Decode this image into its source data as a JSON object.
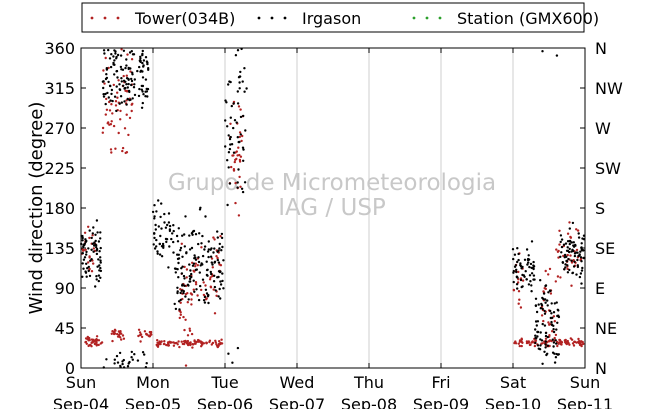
{
  "chart_data": {
    "type": "scatter",
    "title": "",
    "ylabel": "Wind direction (degree)",
    "xlabel": "",
    "ylim": [
      0,
      360
    ],
    "yticks": [
      0,
      45,
      90,
      135,
      180,
      225,
      270,
      315,
      360
    ],
    "y2_ticks": [
      {
        "value": 0,
        "label": "N"
      },
      {
        "value": 45,
        "label": "NE"
      },
      {
        "value": 90,
        "label": "E"
      },
      {
        "value": 135,
        "label": "SE"
      },
      {
        "value": 180,
        "label": "S"
      },
      {
        "value": 225,
        "label": "SW"
      },
      {
        "value": 270,
        "label": "W"
      },
      {
        "value": 315,
        "label": "NW"
      },
      {
        "value": 360,
        "label": "N"
      }
    ],
    "xlim": [
      "Sep-04",
      "Sep-11"
    ],
    "xticks": [
      {
        "day": "Sun",
        "date": "Sep-04"
      },
      {
        "day": "Mon",
        "date": "Sep-05"
      },
      {
        "day": "Tue",
        "date": "Sep-06"
      },
      {
        "day": "Wed",
        "date": "Sep-07"
      },
      {
        "day": "Thu",
        "date": "Sep-08"
      },
      {
        "day": "Fri",
        "date": "Sep-09"
      },
      {
        "day": "Sat",
        "date": "Sep-10"
      },
      {
        "day": "Sun",
        "date": "Sep-11"
      }
    ],
    "grid": true,
    "legend_position": "top",
    "watermark": [
      "Grupo de Micrometeorologia",
      "IAG / USP"
    ],
    "series": [
      {
        "name": "Tower(034B)",
        "color": "#b22222",
        "clusters": [
          {
            "date": "Sep-04",
            "t0": 0.04,
            "t1": 0.3,
            "center": 29,
            "spread": 3,
            "n": 40
          },
          {
            "date": "Sep-04",
            "t0": 0.42,
            "t1": 0.6,
            "center": 37,
            "spread": 3,
            "n": 25
          },
          {
            "date": "Sep-04",
            "t0": 0.3,
            "t1": 0.72,
            "center": 300,
            "spread": 28,
            "n": 60
          },
          {
            "date": "Sep-04",
            "t0": 0.0,
            "t1": 0.2,
            "center": 130,
            "spread": 12,
            "n": 25
          },
          {
            "date": "Sep-04",
            "t0": 0.78,
            "t1": 0.98,
            "center": 37,
            "spread": 3,
            "n": 20
          },
          {
            "date": "Sep-05",
            "t0": 0.05,
            "t1": 0.98,
            "center": 28,
            "spread": 2,
            "n": 90
          },
          {
            "date": "Sep-05",
            "t0": 0.35,
            "t1": 0.55,
            "center": 75,
            "spread": 28,
            "n": 40
          },
          {
            "date": "Sep-05",
            "t0": 0.55,
            "t1": 0.95,
            "center": 110,
            "spread": 20,
            "n": 40
          },
          {
            "date": "Sep-06",
            "t0": 0.05,
            "t1": 0.25,
            "center": 240,
            "spread": 30,
            "n": 35
          },
          {
            "date": "Sep-10",
            "t0": 0.0,
            "t1": 0.7,
            "center": 29,
            "spread": 2,
            "n": 60
          },
          {
            "date": "Sep-10",
            "t0": 0.0,
            "t1": 0.15,
            "center": 100,
            "spread": 15,
            "n": 15
          },
          {
            "date": "Sep-10",
            "t0": 0.4,
            "t1": 0.6,
            "center": 60,
            "spread": 22,
            "n": 30
          },
          {
            "date": "Sep-10",
            "t0": 0.7,
            "t1": 0.98,
            "center": 29,
            "spread": 2,
            "n": 35
          },
          {
            "date": "Sep-10",
            "t0": 0.6,
            "t1": 1.0,
            "center": 125,
            "spread": 15,
            "n": 35
          }
        ]
      },
      {
        "name": "Irgason",
        "color": "#000000",
        "clusters": [
          {
            "date": "Sep-04",
            "t0": 0.0,
            "t1": 0.28,
            "center": 125,
            "spread": 18,
            "n": 70
          },
          {
            "date": "Sep-04",
            "t0": 0.3,
            "t1": 0.95,
            "center": 325,
            "spread": 20,
            "n": 140
          },
          {
            "date": "Sep-04",
            "t0": 0.45,
            "t1": 0.95,
            "center": 5,
            "spread": 8,
            "n": 25
          },
          {
            "date": "Sep-05",
            "t0": 0.0,
            "t1": 0.3,
            "center": 150,
            "spread": 18,
            "n": 50
          },
          {
            "date": "Sep-05",
            "t0": 0.3,
            "t1": 0.98,
            "center": 115,
            "spread": 25,
            "n": 150
          },
          {
            "date": "Sep-06",
            "t0": 0.0,
            "t1": 0.3,
            "center": 280,
            "spread": 45,
            "n": 60
          },
          {
            "date": "Sep-10",
            "t0": 0.0,
            "t1": 0.3,
            "center": 115,
            "spread": 15,
            "n": 60
          },
          {
            "date": "Sep-10",
            "t0": 0.3,
            "t1": 0.65,
            "center": 45,
            "spread": 25,
            "n": 90
          },
          {
            "date": "Sep-10",
            "t0": 0.65,
            "t1": 1.0,
            "center": 130,
            "spread": 15,
            "n": 80
          }
        ]
      },
      {
        "name": "Station (GMX600)",
        "color": "#2ca02c",
        "clusters": []
      }
    ]
  }
}
